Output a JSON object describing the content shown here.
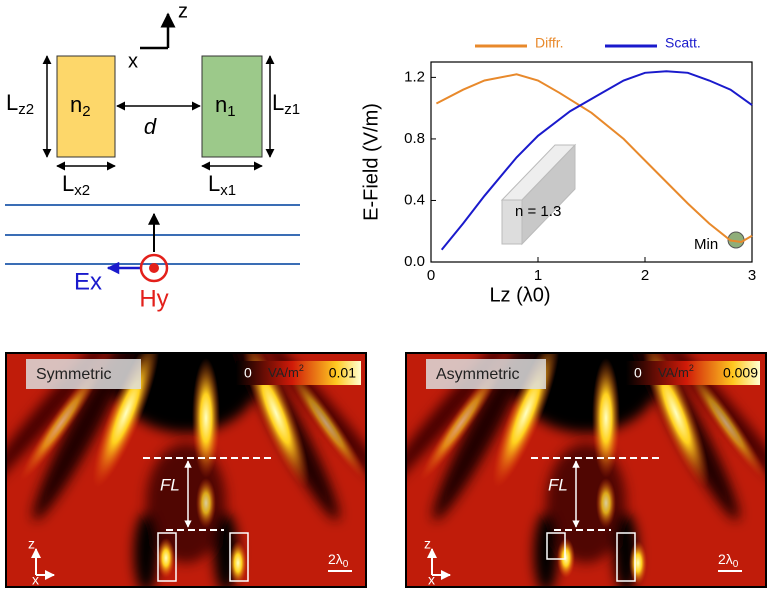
{
  "chart_data": {
    "type": "line",
    "xlabel": "Lz (λ0)",
    "ylabel": "E-Field (V/m)",
    "xlim": [
      0,
      3
    ],
    "ylim": [
      0,
      1.3
    ],
    "xticks": [
      0,
      1,
      2,
      3
    ],
    "yticks": [
      {
        "value": 0,
        "label": "0.0"
      },
      0.4,
      0.8,
      1.2
    ],
    "series": [
      {
        "name": "Diffr.",
        "color": "#e8892b",
        "x": [
          0.05,
          0.3,
          0.5,
          0.8,
          1.0,
          1.2,
          1.5,
          1.8,
          2.0,
          2.2,
          2.4,
          2.6,
          2.8,
          2.9,
          3.0
        ],
        "values": [
          1.03,
          1.12,
          1.18,
          1.22,
          1.18,
          1.1,
          0.97,
          0.8,
          0.66,
          0.52,
          0.38,
          0.25,
          0.14,
          0.13,
          0.17
        ]
      },
      {
        "name": "Scatt.",
        "color": "#1a1acc",
        "x": [
          0.1,
          0.3,
          0.5,
          0.8,
          1.0,
          1.3,
          1.6,
          1.8,
          2.0,
          2.2,
          2.4,
          2.6,
          2.8,
          3.0
        ],
        "values": [
          0.08,
          0.25,
          0.43,
          0.68,
          0.82,
          0.98,
          1.1,
          1.18,
          1.23,
          1.24,
          1.23,
          1.18,
          1.12,
          1.02
        ]
      }
    ],
    "annotations": [
      "Min",
      "n = 1.3"
    ]
  },
  "diagram": {
    "axis_z": "z",
    "axis_x": "x",
    "n2": {
      "base": "n",
      "sub": "2"
    },
    "n1": {
      "base": "n",
      "sub": "1"
    },
    "lz2": {
      "base": "L",
      "sub": "z2"
    },
    "lz1": {
      "base": "L",
      "sub": "z1"
    },
    "lx2": {
      "base": "L",
      "sub": "x2"
    },
    "lx1": {
      "base": "L",
      "sub": "x1"
    },
    "d": "d",
    "ex": "Ex",
    "hy": "Hy"
  },
  "maps": [
    {
      "label": "Symmetric",
      "cmin": "0",
      "unit": {
        "base": "VA/m",
        "sup": "2"
      },
      "cmax": "0.01",
      "fl": "FL",
      "scale": {
        "base": "2λ",
        "sub": "0"
      },
      "z": "z",
      "x": "x"
    },
    {
      "label": "Asymmetric",
      "cmin": "0",
      "unit": {
        "base": "VA/m",
        "sup": "2"
      },
      "cmax": "0.009",
      "fl": "FL",
      "scale": {
        "base": "2λ",
        "sub": "0"
      },
      "z": "z",
      "x": "x"
    }
  ]
}
